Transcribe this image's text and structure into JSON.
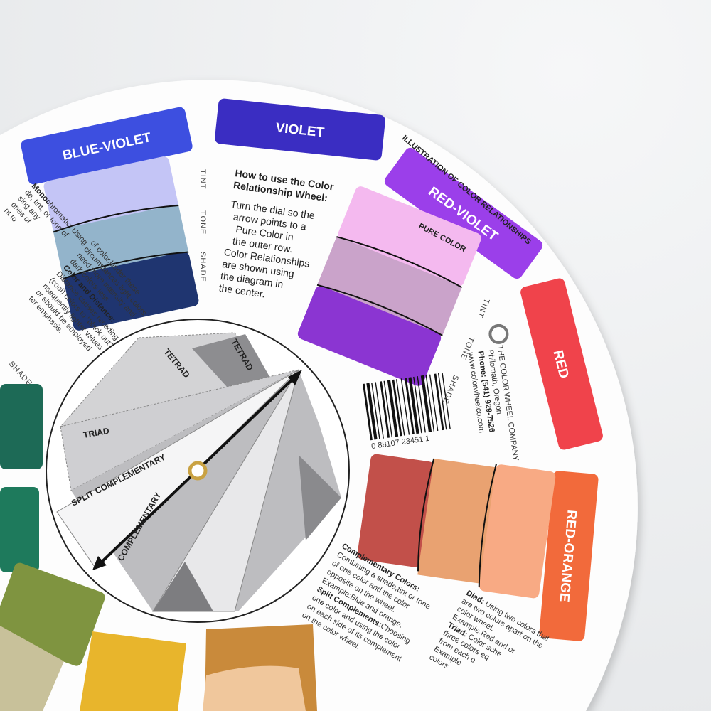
{
  "tabs": {
    "blue_violet": {
      "label": "BLUE-VIOLET",
      "color": "#3d4fe0"
    },
    "violet": {
      "label": "VIOLET",
      "color": "#3a2dc2"
    },
    "red_violet": {
      "label": "RED-VIOLET",
      "color": "#9b3fea"
    },
    "red": {
      "label": "RED",
      "color": "#f0434b"
    },
    "red_orange": {
      "label": "RED-ORANGE",
      "color": "#f26a3b"
    }
  },
  "swatches": {
    "blue_violet": [
      "#c4c5f6",
      "#93b4cb",
      "#1f3570"
    ],
    "red_violet": [
      "#f4b9ef",
      "#caa3ca",
      "#8b35d2"
    ],
    "red_orange": [
      "#c2504a",
      "#e9a271",
      "#f8aa84"
    ]
  },
  "scale_labels": {
    "tint": "TINT",
    "tone": "TONE",
    "shade": "SHADE",
    "pure_color": "PURE COLOR"
  },
  "ring_title": "ILLUSTRATION OF COLOR RELATIONSHIPS",
  "howto": {
    "title": [
      "How to use the Color",
      "Relationship Wheel:"
    ],
    "body": [
      "Turn the dial so the",
      "arrow points to a",
      "Pure Color in",
      "the outer row.",
      "Color Relationships",
      "are shown using",
      "the diagram in",
      "the center."
    ]
  },
  "company": {
    "name": "THE COLOR WHEEL COMPANY",
    "city": "Philomath, Oregon",
    "phone": "Phone: (541) 929-7526",
    "web": "www.colorwheelco.com"
  },
  "barcode": "0 88107 23451 1",
  "dial": {
    "tetrad_1": "TETRAD",
    "tetrad_2": "TETRAD",
    "triad": "TRIAD",
    "split_complementary": "SPLIT COMPLEMENTARY",
    "complementary": "COMPLEMENTARY"
  },
  "left_text": {
    "monochromatic": [
      "hromatic: Using",
      "de, tint, or tone of",
      "sing any",
      "ones of",
      "nt to"
    ],
    "color_intensity": [
      "of color.Under these",
      "circumstances light colors",
      "need more intensity and",
      "dark colors less."
    ],
    "color_distance_title": "Color and Distance:",
    "color_distance": [
      "Distance causes receding",
      "(cool) colors to \"black out\".",
      "nsequently lighter values",
      "or should be employed",
      "ter emphasis."
    ]
  },
  "bottom_text": {
    "complementary_title": "Complementary Colors:",
    "complementary": [
      "Combining a shade,tint or tone",
      "of one color and the color",
      "opposite on the wheel.",
      "Example:Blue and orange."
    ],
    "split_title": "Split Complements:",
    "split": [
      "Choosing",
      "one color and using the color",
      "on each side of its complement",
      "on the color wheel."
    ],
    "diad_title": "Diad:",
    "diad": [
      " Using two colors that",
      "are two colors apart on the",
      "color wheel.",
      "Example:Red and or"
    ],
    "triad_title": "Triad:",
    "triad": [
      " Color sche",
      "three colors eq",
      "from each o",
      "Example",
      "colors"
    ]
  }
}
